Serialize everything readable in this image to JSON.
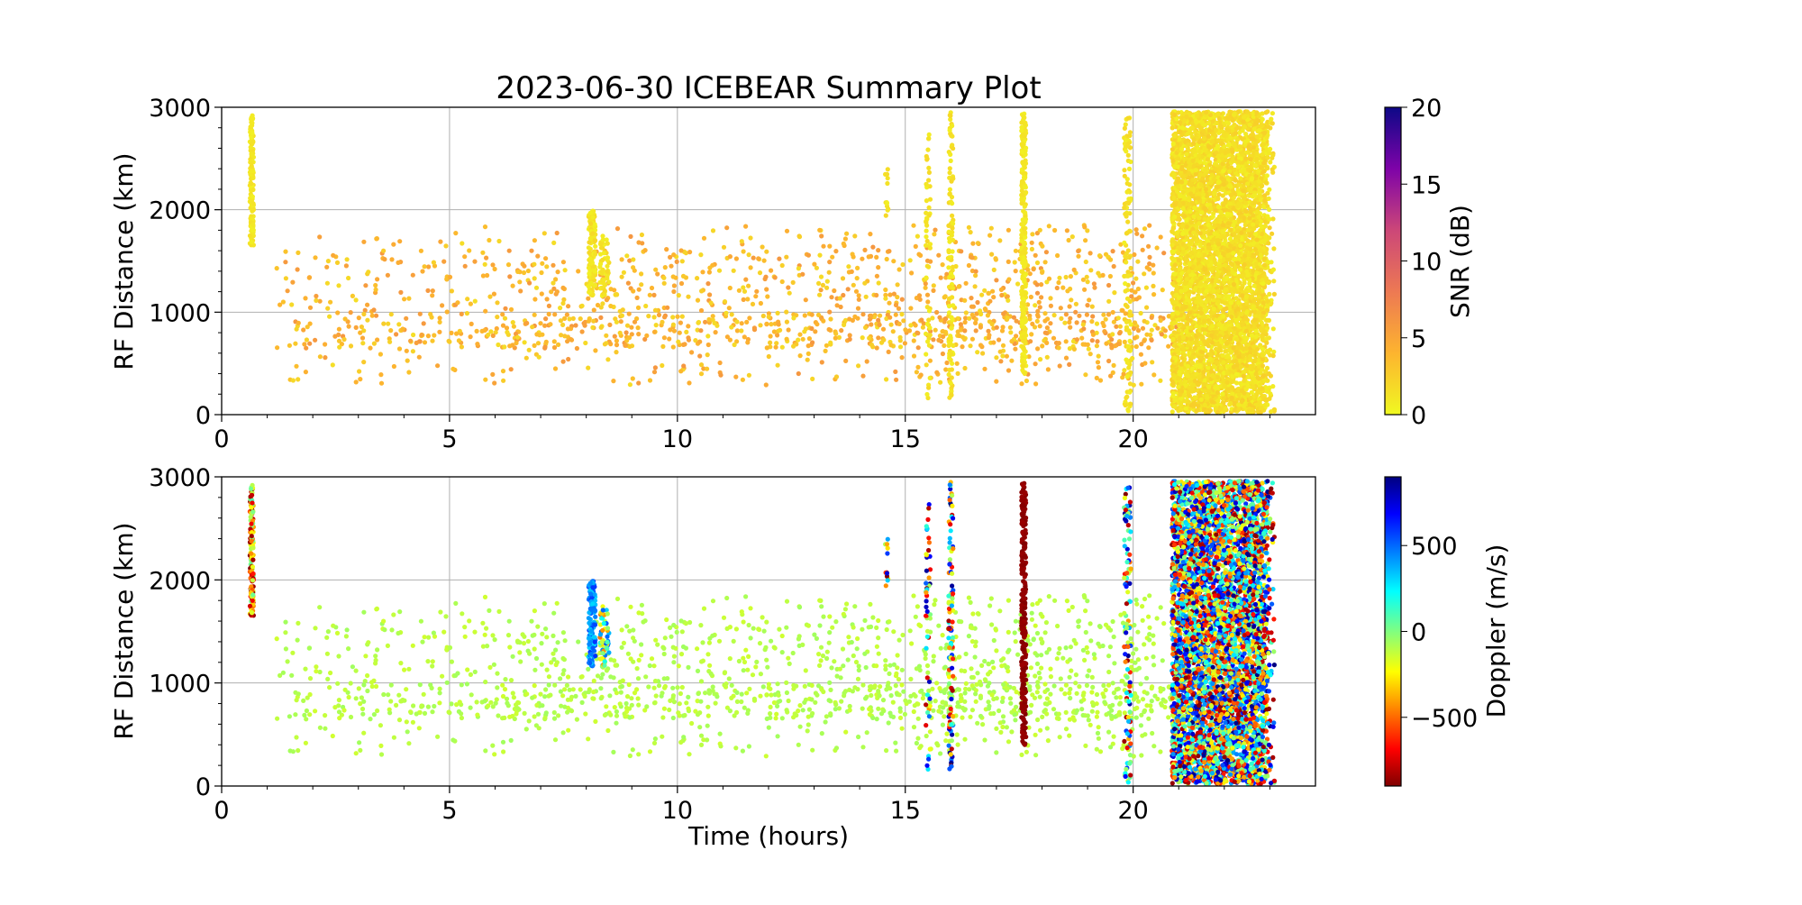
{
  "chart_data": [
    {
      "type": "scatter",
      "title": "2023-06-30 ICEBEAR Summary Plot",
      "xlabel": "",
      "ylabel": "RF Distance (km)",
      "xlim": [
        0,
        24
      ],
      "ylim": [
        0,
        3000
      ],
      "xticks": [
        "0",
        "5",
        "10",
        "15",
        "20"
      ],
      "yticks": [
        "0",
        "1000",
        "2000",
        "3000"
      ],
      "grid": true,
      "color_variable": "snr",
      "colorbar": {
        "label": "SNR (dB)",
        "range": [
          0,
          20
        ],
        "ticks": [
          "0",
          "5",
          "10",
          "15",
          "20"
        ],
        "colormap": "plasma_r"
      }
    },
    {
      "type": "scatter",
      "title": "",
      "xlabel": "Time (hours)",
      "ylabel": "RF Distance (km)",
      "xlim": [
        0,
        24
      ],
      "ylim": [
        0,
        3000
      ],
      "xticks": [
        "0",
        "5",
        "10",
        "15",
        "20"
      ],
      "yticks": [
        "0",
        "1000",
        "2000",
        "3000"
      ],
      "grid": true,
      "color_variable": "doppler",
      "colorbar": {
        "label": "Doppler (m/s)",
        "range": [
          -900,
          900
        ],
        "ticks": [
          "−500",
          "0",
          "500"
        ],
        "tick_values": [
          -500,
          0,
          500
        ],
        "colormap": "jet_r"
      }
    }
  ],
  "clusters": [
    {
      "t": [
        0.62,
        0.7
      ],
      "r": [
        1650,
        2950
      ],
      "n": 140,
      "snr": [
        0.5,
        1.5
      ],
      "dop": [
        -900,
        100
      ]
    },
    {
      "t": [
        1.2,
        21.0
      ],
      "r": [
        280,
        1850
      ],
      "n": 1500,
      "snr": [
        1.5,
        6
      ],
      "dop": [
        -150,
        -60
      ],
      "bg": true
    },
    {
      "t": [
        8.05,
        8.2
      ],
      "r": [
        1150,
        2000
      ],
      "n": 120,
      "snr": [
        0.5,
        2
      ],
      "dop": [
        300,
        600
      ]
    },
    {
      "t": [
        8.3,
        8.5
      ],
      "r": [
        1150,
        1750
      ],
      "n": 60,
      "snr": [
        0.5,
        2
      ],
      "dop": [
        -500,
        600
      ]
    },
    {
      "t": [
        14.55,
        14.65
      ],
      "r": [
        1900,
        2520
      ],
      "n": 12,
      "snr": [
        0.5,
        2
      ],
      "dop": [
        -900,
        900
      ]
    },
    {
      "t": [
        15.45,
        15.55
      ],
      "r": [
        100,
        2800
      ],
      "n": 50,
      "snr": [
        0.5,
        2
      ],
      "dop": [
        -900,
        900
      ]
    },
    {
      "t": [
        15.95,
        16.05
      ],
      "r": [
        60,
        2950
      ],
      "n": 110,
      "snr": [
        0.5,
        2
      ],
      "dop": [
        -900,
        900
      ]
    },
    {
      "t": [
        17.55,
        17.65
      ],
      "r": [
        400,
        2950
      ],
      "n": 260,
      "snr": [
        0.5,
        1.5
      ],
      "dop": [
        -900,
        -850
      ]
    },
    {
      "t": [
        19.8,
        19.95
      ],
      "r": [
        0,
        2950
      ],
      "n": 110,
      "snr": [
        0.5,
        2
      ],
      "dop": [
        -900,
        900
      ]
    },
    {
      "t": [
        20.85,
        22.95
      ],
      "r": [
        20,
        2960
      ],
      "n": 5000,
      "snr": [
        0.5,
        2.5
      ],
      "dop": [
        -900,
        900
      ]
    },
    {
      "t": [
        22.95,
        23.1
      ],
      "r": [
        20,
        2960
      ],
      "n": 60,
      "snr": [
        0.5,
        2.5
      ],
      "dop": [
        -900,
        900
      ]
    }
  ]
}
